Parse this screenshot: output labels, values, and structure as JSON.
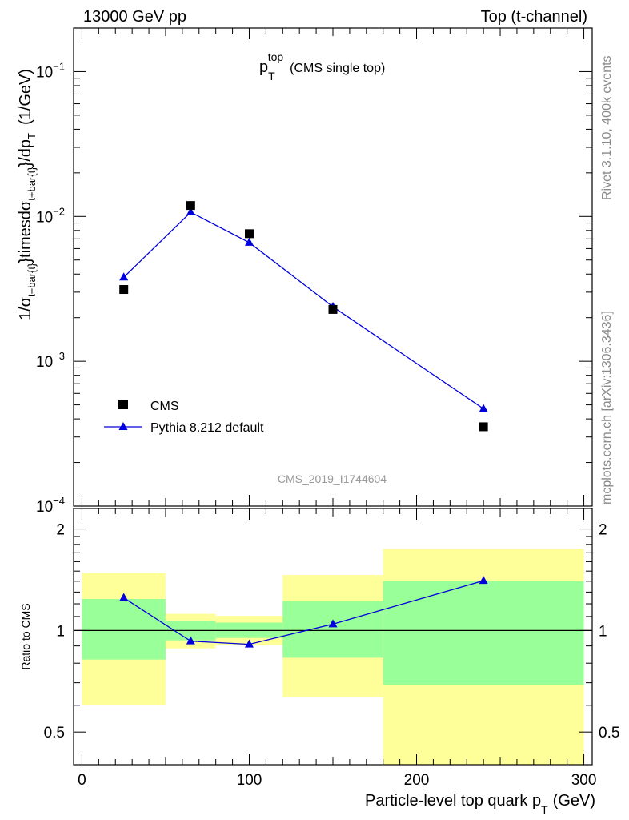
{
  "header": {
    "left": "13000 GeV pp",
    "right": "Top (t-channel)"
  },
  "side_labels": {
    "rivet": "Rivet 3.1.10,  400k events",
    "mcplots": "mcplots.cern.ch [arXiv:1306.3436]"
  },
  "chart_data": [
    {
      "type": "scatter",
      "panel": "main",
      "title": "p_T^top (CMS single top)",
      "title_main": "p",
      "title_sub": "T",
      "title_sup": "top",
      "title_note": "(CMS single top)",
      "ylabel": "1/σ_{t+bar{t}}timesdσ_{t+bar{t}}/dp_T (1/GeV)",
      "ylabel_parts": {
        "a": "1/σ",
        "a_sub": "t+bar{t}",
        "b": "}timesdσ",
        "b_sub": "t+bar{t}",
        "c": "}/dp",
        "c_sub": "T",
        "unit": "(1/GeV)"
      },
      "yscale": "log",
      "ylim": [
        0.0001,
        0.2
      ],
      "xlim": [
        -5,
        305
      ],
      "y_ticks": [
        {
          "value": 0.1,
          "base": "10",
          "exp": "−1"
        },
        {
          "value": 0.01,
          "base": "10",
          "exp": "−2"
        },
        {
          "value": 0.001,
          "base": "10",
          "exp": "−3"
        },
        {
          "value": 0.0001,
          "base": "10",
          "exp": "−4"
        }
      ],
      "watermark": "CMS_2019_I1744604",
      "legend": {
        "placement": "bottom-left",
        "entries": [
          "CMS",
          "Pythia 8.212 default"
        ]
      },
      "series": [
        {
          "name": "CMS",
          "marker": "square",
          "color": "#000000",
          "x": [
            25,
            65,
            100,
            150,
            240
          ],
          "y": [
            0.00313,
            0.0119,
            0.0076,
            0.00228,
            0.000353
          ]
        },
        {
          "name": "Pythia 8.212 default",
          "marker": "triangle",
          "color": "#0000dd",
          "x": [
            25,
            65,
            100,
            150,
            240
          ],
          "y": [
            0.0038,
            0.0107,
            0.0066,
            0.00238,
            0.00047
          ]
        }
      ]
    },
    {
      "type": "bar",
      "panel": "ratio",
      "ylabel": "Ratio to CMS",
      "xlabel": "Particle-level top quark p_T (GeV)",
      "xlabel_main": "Particle-level top quark p",
      "xlabel_sub": "T",
      "xlabel_unit": "(GeV)",
      "yscale": "log",
      "ylim": [
        0.4,
        2.3
      ],
      "xlim": [
        -5,
        305
      ],
      "x_ticks": [
        0,
        100,
        200,
        300
      ],
      "x_tick_labels": [
        "0",
        "100",
        "200",
        "300"
      ],
      "y_ticks": [
        0.5,
        1,
        2
      ],
      "y_tick_labels": [
        "0.5",
        "1",
        "2"
      ],
      "bands": [
        {
          "x0": 0,
          "x1": 50,
          "yellow": [
            0.6,
            1.48
          ],
          "green": [
            0.82,
            1.24
          ]
        },
        {
          "x0": 50,
          "x1": 80,
          "yellow": [
            0.885,
            1.12
          ],
          "green": [
            0.935,
            1.07
          ]
        },
        {
          "x0": 80,
          "x1": 120,
          "yellow": [
            0.905,
            1.105
          ],
          "green": [
            0.95,
            1.055
          ]
        },
        {
          "x0": 120,
          "x1": 180,
          "yellow": [
            0.635,
            1.46
          ],
          "green": [
            0.83,
            1.22
          ]
        },
        {
          "x0": 180,
          "x1": 300,
          "yellow": [
            0.4,
            1.75
          ],
          "green": [
            0.69,
            1.4
          ]
        }
      ],
      "series": [
        {
          "name": "Pythia 8.212 default",
          "color": "#0000dd",
          "x": [
            25,
            65,
            100,
            150,
            240
          ],
          "y": [
            1.25,
            0.93,
            0.91,
            1.045,
            1.405
          ],
          "yerr": [
            0.01,
            0.01,
            0.01,
            0.01,
            0.03
          ]
        }
      ]
    }
  ]
}
